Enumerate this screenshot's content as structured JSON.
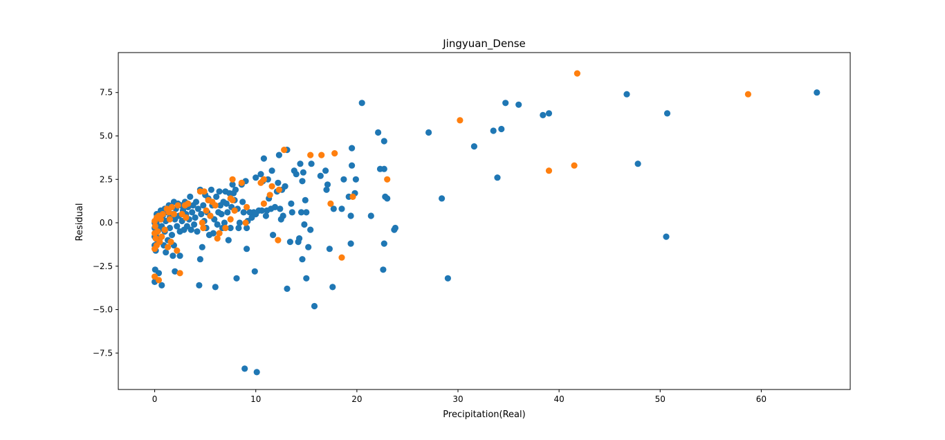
{
  "chart_data": {
    "type": "scatter",
    "title": "Jingyuan_Dense",
    "xlabel": "Precipitation(Real)",
    "ylabel": "Residual",
    "xlim": [
      -3.6,
      68.8
    ],
    "ylim": [
      -9.6,
      9.8
    ],
    "xticks": [
      0,
      10,
      20,
      30,
      40,
      50,
      60
    ],
    "xtick_labels": [
      "0",
      "10",
      "20",
      "30",
      "40",
      "50",
      "60"
    ],
    "yticks": [
      -7.5,
      -5.0,
      -2.5,
      0.0,
      2.5,
      5.0,
      7.5
    ],
    "ytick_labels": [
      "−7.5",
      "−5.0",
      "−2.5",
      "0.0",
      "2.5",
      "5.0",
      "7.5"
    ],
    "grid": false,
    "legend": "none",
    "series": [
      {
        "color": "#1f77b4",
        "points": [
          [
            65.5,
            7.5
          ],
          [
            50.7,
            6.3
          ],
          [
            50.6,
            -0.8
          ],
          [
            47.8,
            3.4
          ],
          [
            46.7,
            7.4
          ],
          [
            39.0,
            6.3
          ],
          [
            38.4,
            6.2
          ],
          [
            36.0,
            6.8
          ],
          [
            34.7,
            6.9
          ],
          [
            34.3,
            5.4
          ],
          [
            33.9,
            2.6
          ],
          [
            33.5,
            5.3
          ],
          [
            31.6,
            4.4
          ],
          [
            29.0,
            -3.2
          ],
          [
            28.4,
            1.4
          ],
          [
            27.1,
            5.2
          ],
          [
            23.8,
            -0.3
          ],
          [
            23.7,
            -0.4
          ],
          [
            23.0,
            1.4
          ],
          [
            22.7,
            4.7
          ],
          [
            22.8,
            1.5
          ],
          [
            22.7,
            3.1
          ],
          [
            22.7,
            -1.2
          ],
          [
            22.6,
            -2.7
          ],
          [
            22.3,
            3.1
          ],
          [
            22.1,
            5.2
          ],
          [
            21.4,
            0.4
          ],
          [
            20.5,
            6.9
          ],
          [
            19.9,
            2.5
          ],
          [
            19.8,
            1.7
          ],
          [
            19.5,
            4.3
          ],
          [
            19.5,
            3.3
          ],
          [
            19.4,
            0.4
          ],
          [
            19.4,
            -1.2
          ],
          [
            19.2,
            1.5
          ],
          [
            18.7,
            2.5
          ],
          [
            18.5,
            0.8
          ],
          [
            17.7,
            0.8
          ],
          [
            17.6,
            -3.7
          ],
          [
            17.3,
            -1.5
          ],
          [
            17.1,
            2.2
          ],
          [
            17.0,
            1.9
          ],
          [
            16.9,
            3.0
          ],
          [
            16.4,
            2.7
          ],
          [
            15.8,
            -4.8
          ],
          [
            15.5,
            3.4
          ],
          [
            15.4,
            -0.4
          ],
          [
            15.2,
            -1.4
          ],
          [
            15.0,
            -3.2
          ],
          [
            15.0,
            0.6
          ],
          [
            14.9,
            1.3
          ],
          [
            14.8,
            -0.1
          ],
          [
            14.7,
            2.9
          ],
          [
            14.6,
            2.4
          ],
          [
            14.6,
            -2.1
          ],
          [
            14.5,
            0.6
          ],
          [
            14.4,
            3.4
          ],
          [
            14.3,
            -0.9
          ],
          [
            14.2,
            -1.1
          ],
          [
            14.0,
            2.8
          ],
          [
            13.8,
            3.0
          ],
          [
            13.6,
            0.6
          ],
          [
            13.5,
            1.1
          ],
          [
            13.4,
            -1.1
          ],
          [
            13.1,
            -3.8
          ],
          [
            13.1,
            4.2
          ],
          [
            12.9,
            2.1
          ],
          [
            12.7,
            0.4
          ],
          [
            12.6,
            1.9
          ],
          [
            12.5,
            0.2
          ],
          [
            12.4,
            0.8
          ],
          [
            12.3,
            3.9
          ],
          [
            12.2,
            2.3
          ],
          [
            12.1,
            1.8
          ],
          [
            11.9,
            0.9
          ],
          [
            11.7,
            -0.7
          ],
          [
            11.6,
            3.0
          ],
          [
            11.5,
            0.8
          ],
          [
            11.3,
            1.4
          ],
          [
            11.2,
            2.5
          ],
          [
            11.1,
            0.7
          ],
          [
            11.0,
            0.4
          ],
          [
            10.8,
            3.7
          ],
          [
            10.7,
            2.4
          ],
          [
            10.6,
            0.7
          ],
          [
            10.5,
            2.8
          ],
          [
            10.3,
            0.7
          ],
          [
            10.1,
            -8.6
          ],
          [
            10.0,
            0.5
          ],
          [
            10.0,
            2.6
          ],
          [
            9.9,
            -2.8
          ],
          [
            9.8,
            0.6
          ],
          [
            9.6,
            0.3
          ],
          [
            9.4,
            0.6
          ],
          [
            9.2,
            0.1
          ],
          [
            9.1,
            -1.5
          ],
          [
            9.1,
            -0.3
          ],
          [
            9.0,
            2.4
          ],
          [
            8.9,
            -8.4
          ],
          [
            8.8,
            0.6
          ],
          [
            8.7,
            1.2
          ],
          [
            8.6,
            2.2
          ],
          [
            8.4,
            0.0
          ],
          [
            8.3,
            -0.3
          ],
          [
            8.2,
            0.8
          ],
          [
            8.1,
            -3.2
          ],
          [
            8.0,
            1.9
          ],
          [
            7.9,
            1.3
          ],
          [
            7.8,
            1.7
          ],
          [
            7.7,
            2.2
          ],
          [
            7.6,
            0.9
          ],
          [
            7.5,
            -0.3
          ],
          [
            7.4,
            1.7
          ],
          [
            7.3,
            -1.0
          ],
          [
            7.2,
            0.6
          ],
          [
            7.1,
            1.1
          ],
          [
            7.0,
            1.8
          ],
          [
            6.9,
            0.0
          ],
          [
            6.8,
            1.2
          ],
          [
            6.7,
            -0.3
          ],
          [
            6.6,
            0.5
          ],
          [
            6.5,
            1.0
          ],
          [
            6.4,
            1.8
          ],
          [
            6.3,
            0.6
          ],
          [
            6.2,
            -0.1
          ],
          [
            6.1,
            1.5
          ],
          [
            6.0,
            -3.7
          ],
          [
            5.9,
            0.2
          ],
          [
            5.8,
            -0.6
          ],
          [
            5.7,
            1.0
          ],
          [
            5.6,
            1.9
          ],
          [
            5.5,
            0.4
          ],
          [
            5.4,
            -0.7
          ],
          [
            5.3,
            1.4
          ],
          [
            5.2,
            0.6
          ],
          [
            5.1,
            -0.3
          ],
          [
            5.0,
            1.6
          ],
          [
            4.9,
            0.1
          ],
          [
            4.8,
            1.0
          ],
          [
            4.7,
            -1.4
          ],
          [
            4.6,
            0.5
          ],
          [
            4.5,
            1.9
          ],
          [
            4.5,
            -2.1
          ],
          [
            4.4,
            -3.6
          ],
          [
            4.3,
            0.8
          ],
          [
            4.2,
            -0.5
          ],
          [
            4.1,
            1.2
          ],
          [
            4.0,
            0.3
          ],
          [
            3.9,
            -0.1
          ],
          [
            3.8,
            1.0
          ],
          [
            3.7,
            0.6
          ],
          [
            3.6,
            -0.4
          ],
          [
            3.5,
            1.5
          ],
          [
            3.4,
            0.2
          ],
          [
            3.3,
            0.9
          ],
          [
            3.2,
            -0.2
          ],
          [
            3.1,
            0.5
          ],
          [
            3.0,
            1.2
          ],
          [
            2.9,
            -0.4
          ],
          [
            2.8,
            0.7
          ],
          [
            2.7,
            0.1
          ],
          [
            2.6,
            1.0
          ],
          [
            2.5,
            -1.9
          ],
          [
            2.5,
            -0.5
          ],
          [
            2.4,
            0.4
          ],
          [
            2.3,
            1.1
          ],
          [
            2.2,
            -0.2
          ],
          [
            2.1,
            0.8
          ],
          [
            2.0,
            -2.8
          ],
          [
            2.0,
            0.2
          ],
          [
            1.9,
            1.2
          ],
          [
            1.9,
            -1.3
          ],
          [
            1.8,
            -1.9
          ],
          [
            1.8,
            0.5
          ],
          [
            1.7,
            -0.7
          ],
          [
            1.6,
            0.9
          ],
          [
            1.5,
            -0.3
          ],
          [
            1.5,
            0.3
          ],
          [
            1.4,
            1.0
          ],
          [
            1.3,
            -1.0
          ],
          [
            1.2,
            0.6
          ],
          [
            1.1,
            -1.7
          ],
          [
            1.1,
            0.1
          ],
          [
            1.0,
            0.8
          ],
          [
            1.0,
            -0.5
          ],
          [
            0.9,
            -1.3
          ],
          [
            0.8,
            0.4
          ],
          [
            0.7,
            -3.6
          ],
          [
            0.7,
            -0.2
          ],
          [
            0.6,
            0.7
          ],
          [
            0.5,
            -0.9
          ],
          [
            0.5,
            0.2
          ],
          [
            0.4,
            -2.9
          ],
          [
            0.4,
            -0.4
          ],
          [
            0.3,
            0.3
          ],
          [
            0.3,
            -1.1
          ],
          [
            0.2,
            -0.1
          ],
          [
            0.2,
            0.5
          ],
          [
            0.1,
            -1.6
          ],
          [
            0.1,
            -0.7
          ],
          [
            0.05,
            0.1
          ],
          [
            0.05,
            -2.7
          ],
          [
            0.0,
            -3.4
          ],
          [
            0.0,
            -0.3
          ],
          [
            0.0,
            -1.3
          ],
          [
            0.0,
            0.0
          ],
          [
            0.0,
            -0.8
          ]
        ]
      },
      {
        "color": "#ff7f0e",
        "points": [
          [
            58.7,
            7.4
          ],
          [
            41.8,
            8.6
          ],
          [
            41.5,
            3.3
          ],
          [
            39.0,
            3.0
          ],
          [
            30.2,
            5.9
          ],
          [
            23.0,
            2.5
          ],
          [
            19.6,
            1.5
          ],
          [
            18.5,
            -2.0
          ],
          [
            17.8,
            4.0
          ],
          [
            17.4,
            1.1
          ],
          [
            16.5,
            3.9
          ],
          [
            15.4,
            3.9
          ],
          [
            12.8,
            4.2
          ],
          [
            12.3,
            1.9
          ],
          [
            12.2,
            -1.0
          ],
          [
            11.6,
            2.1
          ],
          [
            11.4,
            1.6
          ],
          [
            10.8,
            2.5
          ],
          [
            10.8,
            1.1
          ],
          [
            10.5,
            2.3
          ],
          [
            9.1,
            0.9
          ],
          [
            9.0,
            0.0
          ],
          [
            8.6,
            2.3
          ],
          [
            7.9,
            0.7
          ],
          [
            7.7,
            1.3
          ],
          [
            7.7,
            2.5
          ],
          [
            7.5,
            0.2
          ],
          [
            7.5,
            1.4
          ],
          [
            7.0,
            -0.3
          ],
          [
            6.4,
            -0.6
          ],
          [
            6.2,
            -0.9
          ],
          [
            6.0,
            1.0
          ],
          [
            5.7,
            1.2
          ],
          [
            5.5,
            0.4
          ],
          [
            5.3,
            1.3
          ],
          [
            5.1,
            0.7
          ],
          [
            4.9,
            1.8
          ],
          [
            4.8,
            -0.3
          ],
          [
            4.7,
            0.0
          ],
          [
            4.5,
            1.8
          ],
          [
            3.3,
            1.1
          ],
          [
            3.1,
            0.3
          ],
          [
            3.0,
            1.0
          ],
          [
            2.7,
            0.5
          ],
          [
            2.5,
            -2.9
          ],
          [
            2.3,
            1.0
          ],
          [
            2.2,
            -1.6
          ],
          [
            1.9,
            0.5
          ],
          [
            1.7,
            0.9
          ],
          [
            1.6,
            -1.1
          ],
          [
            1.5,
            0.2
          ],
          [
            1.4,
            0.6
          ],
          [
            1.3,
            -1.4
          ],
          [
            1.2,
            0.8
          ],
          [
            1.0,
            -0.4
          ],
          [
            0.8,
            0.5
          ],
          [
            0.7,
            -0.8
          ],
          [
            0.6,
            0.2
          ],
          [
            0.5,
            -1.1
          ],
          [
            0.4,
            -3.3
          ],
          [
            0.4,
            0.4
          ],
          [
            0.3,
            -0.5
          ],
          [
            0.2,
            0.3
          ],
          [
            0.2,
            -1.3
          ],
          [
            0.1,
            -0.9
          ],
          [
            0.05,
            -0.2
          ],
          [
            0.0,
            -3.1
          ],
          [
            0.0,
            -0.6
          ],
          [
            0.0,
            0.1
          ],
          [
            0.0,
            -1.5
          ]
        ]
      }
    ]
  }
}
